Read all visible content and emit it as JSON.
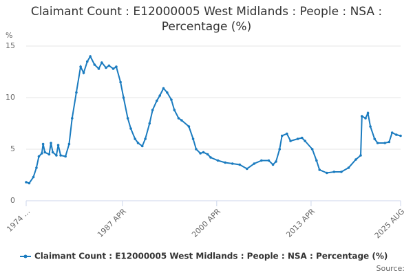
{
  "chart_data": {
    "type": "line",
    "title": "Claimant Count : E12000005 West Midlands : People : NSA : Percentage (%)",
    "y_label": "%",
    "source": "Source:",
    "legend": "bottom",
    "grid": true,
    "xlim": [
      "1974-01",
      "2025-08"
    ],
    "xticks": [
      {
        "value": "1974-01",
        "label": "1974 ..."
      },
      {
        "value": "1987-04",
        "label": "1987 APR"
      },
      {
        "value": "2000-04",
        "label": "2000 APR"
      },
      {
        "value": "2013-04",
        "label": "2013 APR"
      },
      {
        "value": "2025-08",
        "label": "2025 AUG"
      }
    ],
    "ylim": [
      0,
      15
    ],
    "yticks": [
      0,
      5,
      10,
      15
    ],
    "x": [
      "1974-01",
      "1974-06",
      "1975-01",
      "1975-06",
      "1975-10",
      "1976-03",
      "1976-05",
      "1976-08",
      "1977-03",
      "1977-06",
      "1977-09",
      "1978-03",
      "1978-06",
      "1978-10",
      "1979-06",
      "1979-12",
      "1980-05",
      "1980-12",
      "1981-07",
      "1981-12",
      "1982-06",
      "1982-11",
      "1983-06",
      "1984-01",
      "1984-06",
      "1985-01",
      "1985-06",
      "1986-01",
      "1986-06",
      "1987-01",
      "1987-06",
      "1988-01",
      "1988-06",
      "1989-01",
      "1989-06",
      "1990-01",
      "1990-06",
      "1991-01",
      "1991-06",
      "1992-01",
      "1992-06",
      "1992-12",
      "1993-06",
      "1994-01",
      "1994-06",
      "1995-01",
      "1995-06",
      "1996-06",
      "1997-01",
      "1997-06",
      "1998-01",
      "1998-06",
      "1999-01",
      "1999-06",
      "2000-06",
      "2001-06",
      "2002-06",
      "2003-06",
      "2004-06",
      "2005-06",
      "2006-06",
      "2007-06",
      "2008-01",
      "2008-06",
      "2008-12",
      "2009-04",
      "2009-12",
      "2010-06",
      "2011-06",
      "2012-01",
      "2012-06",
      "2013-06",
      "2014-01",
      "2014-06",
      "2015-06",
      "2016-06",
      "2017-06",
      "2018-06",
      "2019-06",
      "2020-02",
      "2020-04",
      "2020-10",
      "2021-02",
      "2021-06",
      "2022-01",
      "2022-06",
      "2023-06",
      "2024-01",
      "2024-06",
      "2025-01",
      "2025-08"
    ],
    "series": [
      {
        "name": "Claimant Count : E12000005 West Midlands : People : NSA : Percentage (%)",
        "color": "#1a7bbf",
        "values": [
          1.8,
          1.7,
          2.3,
          3.2,
          4.3,
          4.6,
          5.5,
          4.7,
          4.5,
          5.6,
          4.7,
          4.4,
          5.4,
          4.4,
          4.3,
          5.5,
          8.0,
          10.5,
          13.0,
          12.4,
          13.5,
          14.0,
          13.2,
          12.8,
          13.4,
          12.9,
          13.1,
          12.8,
          13.0,
          11.5,
          10.0,
          8.0,
          7.0,
          6.0,
          5.6,
          5.3,
          6.0,
          7.5,
          8.8,
          9.7,
          10.2,
          10.9,
          10.5,
          9.8,
          8.8,
          8.0,
          7.8,
          7.2,
          6.0,
          5.0,
          4.6,
          4.7,
          4.5,
          4.2,
          3.9,
          3.7,
          3.6,
          3.5,
          3.1,
          3.6,
          3.9,
          3.9,
          3.5,
          3.8,
          5.0,
          6.3,
          6.5,
          5.8,
          6.0,
          6.1,
          5.8,
          5.0,
          3.9,
          3.0,
          2.7,
          2.8,
          2.8,
          3.2,
          4.0,
          4.4,
          8.2,
          8.0,
          8.5,
          7.2,
          6.0,
          5.6,
          5.6,
          5.7,
          6.6,
          6.4,
          6.3
        ]
      }
    ]
  }
}
